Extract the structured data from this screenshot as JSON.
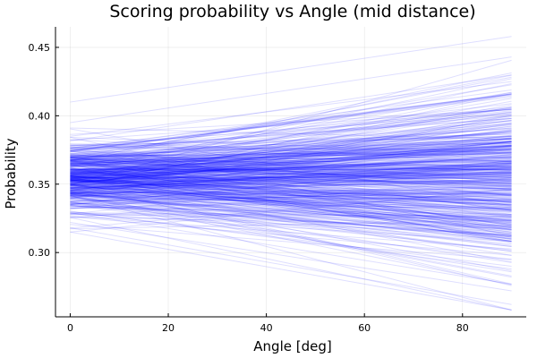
{
  "chart_data": {
    "type": "line",
    "title": "Scoring probability vs Angle (mid distance)",
    "xlabel": "Angle [deg]",
    "ylabel": "Probability",
    "xlim": [
      -3,
      93
    ],
    "ylim": [
      0.253,
      0.465
    ],
    "xticks": [
      0,
      20,
      40,
      60,
      80
    ],
    "yticks": [
      0.3,
      0.35,
      0.4,
      0.45
    ],
    "xtick_labels": [
      "0",
      "20",
      "40",
      "60",
      "80"
    ],
    "ytick_labels": [
      "0.30",
      "0.35",
      "0.40",
      "0.45"
    ],
    "grid": true,
    "legend": "none",
    "line_color": "#0000ff",
    "line_opacity": 0.13,
    "series_count": 500,
    "x_range": [
      0,
      90
    ],
    "start_value_range": [
      0.315,
      0.41
    ],
    "end_value_range": [
      0.258,
      0.458
    ],
    "start_value_center": 0.355,
    "representative_series": [
      {
        "x": [
          0,
          90
        ],
        "values": [
          0.41,
          0.458
        ]
      },
      {
        "x": [
          0,
          90
        ],
        "values": [
          0.395,
          0.443
        ]
      },
      {
        "x": [
          0,
          90
        ],
        "values": [
          0.385,
          0.425
        ]
      },
      {
        "x": [
          0,
          90
        ],
        "values": [
          0.372,
          0.405
        ]
      },
      {
        "x": [
          0,
          90
        ],
        "values": [
          0.362,
          0.38
        ]
      },
      {
        "x": [
          0,
          90
        ],
        "values": [
          0.355,
          0.355
        ]
      },
      {
        "x": [
          0,
          90
        ],
        "values": [
          0.348,
          0.332
        ]
      },
      {
        "x": [
          0,
          90
        ],
        "values": [
          0.34,
          0.31
        ]
      },
      {
        "x": [
          0,
          90
        ],
        "values": [
          0.33,
          0.29
        ]
      },
      {
        "x": [
          0,
          90
        ],
        "values": [
          0.322,
          0.272
        ]
      },
      {
        "x": [
          0,
          90
        ],
        "values": [
          0.318,
          0.262
        ]
      },
      {
        "x": [
          0,
          90
        ],
        "values": [
          0.315,
          0.258
        ]
      }
    ]
  }
}
